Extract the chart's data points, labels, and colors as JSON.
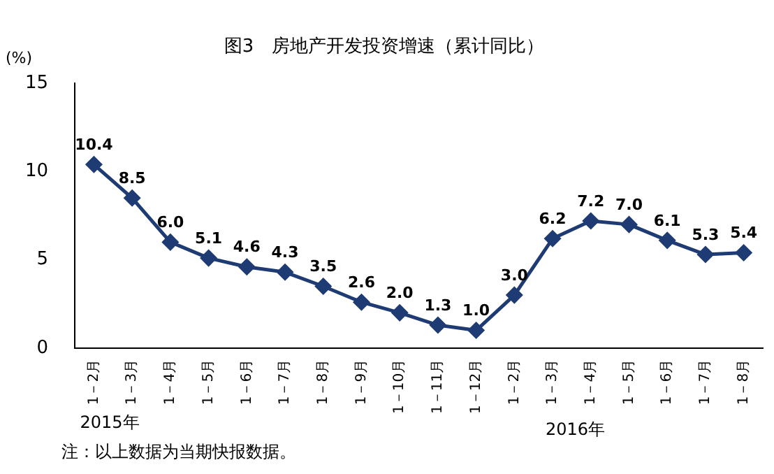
{
  "chart_data": {
    "type": "line",
    "title": "图3　房地产开发投资增速（累计同比）",
    "ylabel": "(%)",
    "categories": [
      "1－2月",
      "1－3月",
      "1－4月",
      "1－5月",
      "1－6月",
      "1－7月",
      "1－8月",
      "1－9月",
      "1－10月",
      "1－11月",
      "1－12月",
      "1－2月",
      "1－3月",
      "1－4月",
      "1－5月",
      "1－6月",
      "1－7月",
      "1－8月"
    ],
    "series": [
      {
        "color": "#1f3b74",
        "values": [
          10.4,
          8.5,
          6.0,
          5.1,
          4.6,
          4.3,
          3.5,
          2.6,
          2.0,
          1.3,
          1.0,
          3.0,
          6.2,
          7.2,
          7.0,
          6.1,
          5.3,
          5.4
        ],
        "value_labels": [
          "10.4",
          "8.5",
          "6.0",
          "5.1",
          "4.6",
          "4.3",
          "3.5",
          "2.6",
          "2.0",
          "1.3",
          "1.0",
          "3.0",
          "6.2",
          "7.2",
          "7.0",
          "6.1",
          "5.3",
          "5.4"
        ]
      }
    ],
    "ylim": [
      0,
      15
    ],
    "yticks": [
      0,
      5,
      10,
      15
    ],
    "grid": false,
    "legend": false,
    "marker": "diamond",
    "line_style": "solid",
    "annotations": [
      "2015年",
      "2016年",
      "注：以上数据为当期快报数据。"
    ]
  }
}
